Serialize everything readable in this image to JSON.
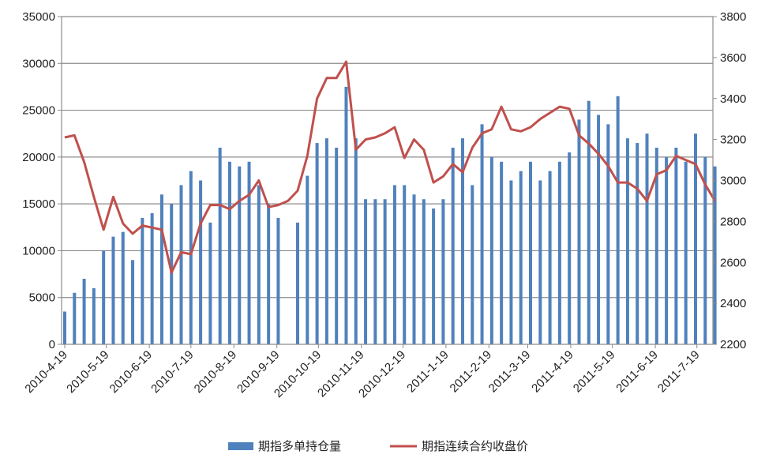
{
  "chart_data": {
    "type": "bar+line",
    "title": "",
    "left_axis": {
      "min": 0,
      "max": 35000,
      "step": 5000,
      "ticks": [
        "0",
        "5000",
        "10000",
        "15000",
        "20000",
        "25000",
        "30000",
        "35000"
      ]
    },
    "right_axis": {
      "min": 2200,
      "max": 3800,
      "step": 200,
      "ticks": [
        "2200",
        "2400",
        "2600",
        "2800",
        "3000",
        "3200",
        "3400",
        "3600",
        "3800"
      ]
    },
    "x_ticks": [
      "2010-4-19",
      "2010-5-19",
      "2010-6-19",
      "2010-7-19",
      "2010-8-19",
      "2010-9-19",
      "2010-10-19",
      "2010-11-19",
      "2010-12-19",
      "2011-1-19",
      "2011-2-19",
      "2011-3-19",
      "2011-4-19",
      "2011-5-19",
      "2011-6-19",
      "2011-7-19"
    ],
    "grid": "horizontal",
    "legend_position": "bottom",
    "dates": [
      "2010-04-19",
      "2010-04-26",
      "2010-05-03",
      "2010-05-10",
      "2010-05-17",
      "2010-05-24",
      "2010-05-31",
      "2010-06-07",
      "2010-06-14",
      "2010-06-21",
      "2010-06-28",
      "2010-07-05",
      "2010-07-12",
      "2010-07-19",
      "2010-07-26",
      "2010-08-02",
      "2010-08-09",
      "2010-08-16",
      "2010-08-23",
      "2010-08-30",
      "2010-09-06",
      "2010-09-13",
      "2010-09-20",
      "2010-09-27",
      "2010-10-04",
      "2010-10-11",
      "2010-10-18",
      "2010-10-25",
      "2010-11-01",
      "2010-11-08",
      "2010-11-15",
      "2010-11-22",
      "2010-11-29",
      "2010-12-06",
      "2010-12-13",
      "2010-12-20",
      "2010-12-27",
      "2011-01-03",
      "2011-01-10",
      "2011-01-17",
      "2011-01-24",
      "2011-01-31",
      "2011-02-07",
      "2011-02-14",
      "2011-02-21",
      "2011-02-28",
      "2011-03-07",
      "2011-03-14",
      "2011-03-21",
      "2011-03-28",
      "2011-04-04",
      "2011-04-11",
      "2011-04-18",
      "2011-04-25",
      "2011-05-02",
      "2011-05-09",
      "2011-05-16",
      "2011-05-23",
      "2011-05-30",
      "2011-06-06",
      "2011-06-13",
      "2011-06-20",
      "2011-06-27",
      "2011-07-04",
      "2011-07-11",
      "2011-07-18",
      "2011-07-25",
      "2011-08-01"
    ],
    "series": [
      {
        "name": "期指多单持仓量",
        "type": "bar",
        "axis": "left",
        "color": "#4f81bd",
        "values": [
          3500,
          5500,
          7000,
          6000,
          10000,
          11500,
          12000,
          9000,
          13500,
          14000,
          16000,
          15000,
          17000,
          18500,
          17500,
          13000,
          21000,
          19500,
          19000,
          19500,
          17000,
          15000,
          13500,
          0,
          13000,
          18000,
          21500,
          22000,
          21000,
          27500,
          22000,
          15500,
          15500,
          15500,
          17000,
          17000,
          16000,
          15500,
          14500,
          15500,
          21000,
          22000,
          17000,
          23500,
          20000,
          19500,
          17500,
          18500,
          19500,
          17500,
          18500,
          19500,
          20500,
          24000,
          26000,
          24500,
          23500,
          26500,
          22000,
          21500,
          22500,
          21000,
          20000,
          21000,
          19500,
          22500,
          20000,
          19000
        ]
      },
      {
        "name": "期指连续合约收盘价",
        "type": "line",
        "axis": "right",
        "color": "#c0504d",
        "values": [
          3210,
          3220,
          3090,
          2920,
          2760,
          2920,
          2790,
          2740,
          2780,
          2770,
          2760,
          2550,
          2650,
          2640,
          2790,
          2880,
          2880,
          2860,
          2900,
          2930,
          3000,
          2870,
          2880,
          2900,
          2950,
          3120,
          3400,
          3500,
          3500,
          3580,
          3150,
          3200,
          3210,
          3230,
          3260,
          3110,
          3200,
          3150,
          2990,
          3020,
          3080,
          3040,
          3160,
          3230,
          3250,
          3360,
          3250,
          3240,
          3260,
          3300,
          3330,
          3360,
          3350,
          3220,
          3180,
          3130,
          3070,
          2990,
          2990,
          2960,
          2900,
          3030,
          3050,
          3120,
          3100,
          3080,
          2980,
          2900
        ]
      }
    ]
  }
}
